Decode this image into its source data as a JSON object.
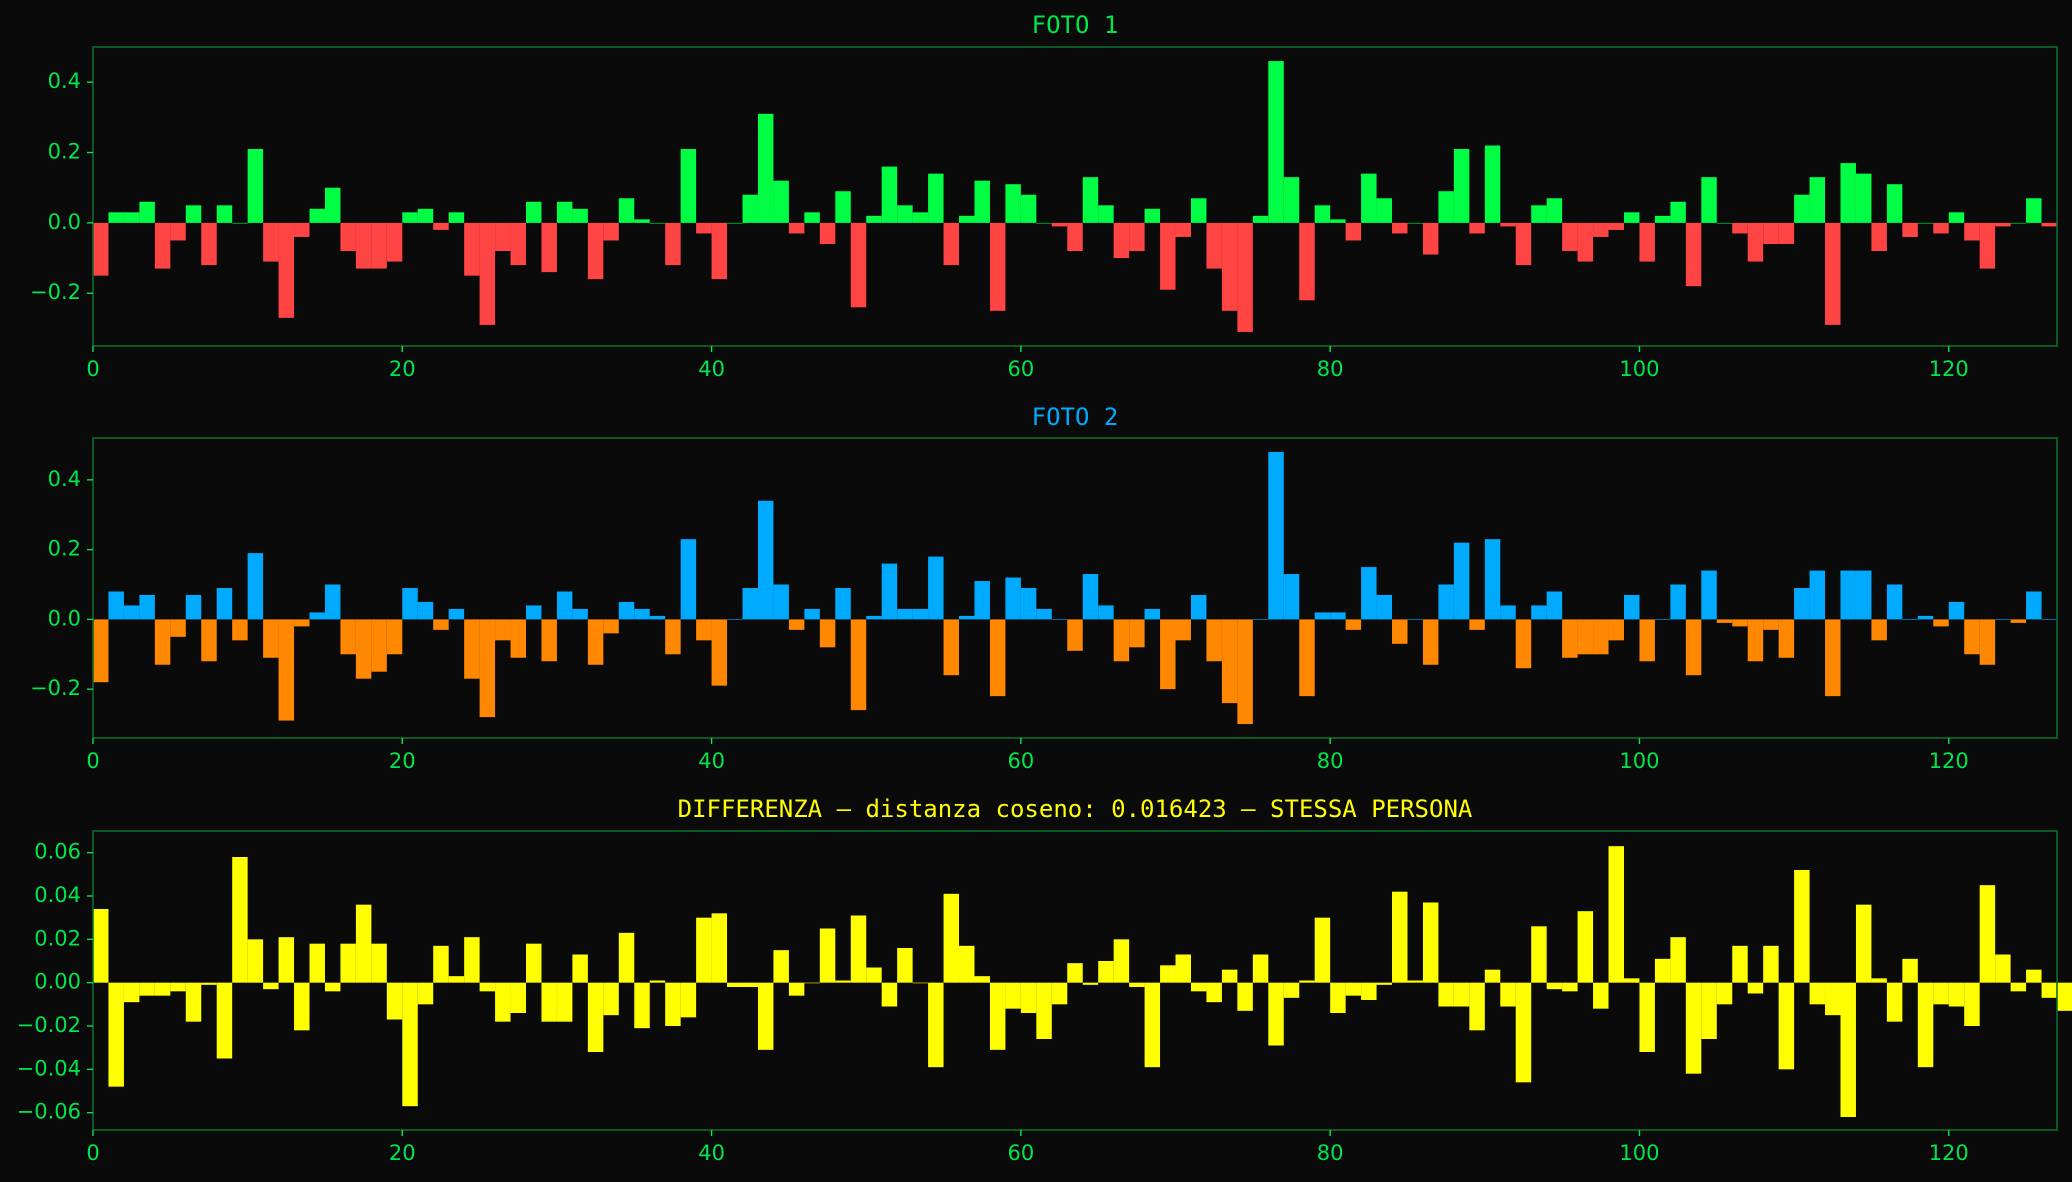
{
  "chart_data": [
    {
      "type": "bar",
      "title": "FOTO 1",
      "title_color": "#00e64d",
      "pos_color": "#00ff44",
      "neg_color": "#ff4444",
      "axis_color": "#00e64d",
      "frame_color": "#0a6b2a",
      "xlim": [
        0,
        127
      ],
      "ylim": [
        -0.35,
        0.5
      ],
      "xticks": [
        0,
        20,
        40,
        60,
        80,
        100,
        120
      ],
      "yticks": [
        -0.2,
        0.0,
        0.2,
        0.4
      ],
      "ytick_labels": [
        "−0.2",
        "0.0",
        "0.2",
        "0.4"
      ],
      "xtick_labels": [
        "0",
        "20",
        "40",
        "60",
        "80",
        "100",
        "120"
      ],
      "values": [
        -0.15,
        0.03,
        0.03,
        0.06,
        -0.13,
        -0.05,
        0.05,
        -0.12,
        0.05,
        0.0,
        0.21,
        -0.11,
        -0.27,
        -0.04,
        0.04,
        0.1,
        -0.08,
        -0.13,
        -0.13,
        -0.11,
        0.03,
        0.04,
        -0.02,
        0.03,
        -0.15,
        -0.29,
        -0.08,
        -0.12,
        0.06,
        -0.14,
        0.06,
        0.04,
        -0.16,
        -0.05,
        0.07,
        0.01,
        0.0,
        -0.12,
        0.21,
        -0.03,
        -0.16,
        0.0,
        0.08,
        0.31,
        0.12,
        -0.03,
        0.03,
        -0.06,
        0.09,
        -0.24,
        0.02,
        0.16,
        0.05,
        0.03,
        0.14,
        -0.12,
        0.02,
        0.12,
        -0.25,
        0.11,
        0.08,
        0.0,
        -0.01,
        -0.08,
        0.13,
        0.05,
        -0.1,
        -0.08,
        0.04,
        -0.19,
        -0.04,
        0.07,
        -0.13,
        -0.25,
        -0.31,
        0.02,
        0.46,
        0.13,
        -0.22,
        0.05,
        0.01,
        -0.05,
        0.14,
        0.07,
        -0.03,
        0.0,
        -0.09,
        0.09,
        0.21,
        -0.03,
        0.22,
        -0.01,
        -0.12,
        0.05,
        0.07,
        -0.08,
        -0.11,
        -0.04,
        -0.02,
        0.03,
        -0.11,
        0.02,
        0.06,
        -0.18,
        0.13,
        0.0,
        -0.03,
        -0.11,
        -0.06,
        -0.06,
        0.08,
        0.13,
        -0.29,
        0.17,
        0.14,
        -0.08,
        0.11,
        -0.04,
        0.0,
        -0.03,
        0.03,
        -0.05,
        -0.13,
        -0.01,
        0.0,
        0.07,
        -0.01
      ]
    },
    {
      "type": "bar",
      "title": "FOTO 2",
      "title_color": "#00aaff",
      "pos_color": "#00aaff",
      "neg_color": "#ff8800",
      "axis_color": "#00e64d",
      "frame_color": "#0a6b2a",
      "xlim": [
        0,
        127
      ],
      "ylim": [
        -0.34,
        0.52
      ],
      "xticks": [
        0,
        20,
        40,
        60,
        80,
        100,
        120
      ],
      "yticks": [
        -0.2,
        0.0,
        0.2,
        0.4
      ],
      "ytick_labels": [
        "−0.2",
        "0.0",
        "0.2",
        "0.4"
      ],
      "xtick_labels": [
        "0",
        "20",
        "40",
        "60",
        "80",
        "100",
        "120"
      ],
      "values": [
        -0.18,
        0.08,
        0.04,
        0.07,
        -0.13,
        -0.05,
        0.07,
        -0.12,
        0.09,
        -0.06,
        0.19,
        -0.11,
        -0.29,
        -0.02,
        0.02,
        0.1,
        -0.1,
        -0.17,
        -0.15,
        -0.1,
        0.09,
        0.05,
        -0.03,
        0.03,
        -0.17,
        -0.28,
        -0.06,
        -0.11,
        0.04,
        -0.12,
        0.08,
        0.03,
        -0.13,
        -0.04,
        0.05,
        0.03,
        0.01,
        -0.1,
        0.23,
        -0.06,
        -0.19,
        0.0,
        0.09,
        0.34,
        0.1,
        -0.03,
        0.03,
        -0.08,
        0.09,
        -0.26,
        0.01,
        0.16,
        0.03,
        0.03,
        0.18,
        -0.16,
        0.01,
        0.11,
        -0.22,
        0.12,
        0.09,
        0.03,
        0.0,
        -0.09,
        0.13,
        0.04,
        -0.12,
        -0.08,
        0.03,
        -0.2,
        -0.06,
        0.07,
        -0.12,
        -0.24,
        -0.3,
        0.0,
        0.48,
        0.13,
        -0.22,
        0.02,
        0.02,
        -0.03,
        0.15,
        0.07,
        -0.07,
        0.0,
        -0.13,
        0.1,
        0.22,
        -0.03,
        0.23,
        0.04,
        -0.14,
        0.04,
        0.08,
        -0.11,
        -0.1,
        -0.1,
        -0.06,
        0.07,
        -0.12,
        0.0,
        0.1,
        -0.16,
        0.14,
        -0.01,
        -0.02,
        -0.12,
        -0.03,
        -0.11,
        0.09,
        0.14,
        -0.22,
        0.14,
        0.14,
        -0.06,
        0.1,
        0.0,
        0.01,
        -0.02,
        0.05,
        -0.1,
        -0.13,
        0.0,
        -0.01,
        0.08,
        0.0
      ]
    },
    {
      "type": "bar",
      "title": "DIFFERENZA — distanza coseno: 0.016423 — STESSA PERSONA",
      "title_color": "#ffff00",
      "pos_color": "#ffff00",
      "neg_color": "#ffff00",
      "axis_color": "#00e64d",
      "frame_color": "#0a6b2a",
      "xlim": [
        0,
        127
      ],
      "ylim": [
        -0.068,
        0.07
      ],
      "xticks": [
        0,
        20,
        40,
        60,
        80,
        100,
        120
      ],
      "yticks": [
        -0.06,
        -0.04,
        -0.02,
        0.0,
        0.02,
        0.04,
        0.06
      ],
      "ytick_labels": [
        "−0.06",
        "−0.04",
        "−0.02",
        "0.00",
        "0.02",
        "0.04",
        "0.06"
      ],
      "xtick_labels": [
        "0",
        "20",
        "40",
        "60",
        "80",
        "100",
        "120"
      ],
      "values": [
        0.034,
        -0.048,
        -0.009,
        -0.006,
        -0.006,
        -0.004,
        -0.018,
        -0.001,
        -0.035,
        0.058,
        0.02,
        -0.003,
        0.021,
        -0.022,
        0.018,
        -0.004,
        0.018,
        0.036,
        0.018,
        -0.017,
        -0.057,
        -0.01,
        0.017,
        0.003,
        0.021,
        -0.004,
        -0.018,
        -0.014,
        0.018,
        -0.018,
        -0.018,
        0.013,
        -0.032,
        -0.015,
        0.023,
        -0.021,
        0.001,
        -0.02,
        -0.016,
        0.03,
        0.032,
        -0.002,
        -0.002,
        -0.031,
        0.015,
        -0.006,
        0.0,
        0.025,
        0.001,
        0.031,
        0.007,
        -0.011,
        0.016,
        0.0,
        -0.039,
        0.041,
        0.017,
        0.003,
        -0.031,
        -0.012,
        -0.014,
        -0.026,
        -0.01,
        0.009,
        -0.001,
        0.01,
        0.02,
        -0.002,
        -0.039,
        0.008,
        0.013,
        -0.004,
        -0.009,
        0.006,
        -0.013,
        0.013,
        -0.029,
        -0.007,
        0.001,
        0.03,
        -0.014,
        -0.006,
        -0.008,
        -0.001,
        0.042,
        0.001,
        0.037,
        -0.011,
        -0.011,
        -0.022,
        0.006,
        -0.011,
        -0.046,
        0.026,
        -0.003,
        -0.004,
        0.033,
        -0.012,
        0.063,
        0.002,
        -0.032,
        0.011,
        0.021,
        -0.042,
        -0.026,
        -0.01,
        0.017,
        -0.005,
        0.017,
        -0.04,
        0.052,
        -0.01,
        -0.015,
        -0.062,
        0.036,
        0.002,
        -0.018,
        0.011,
        -0.039,
        -0.01,
        -0.011,
        -0.02,
        0.045,
        0.013,
        -0.004,
        0.006,
        -0.007,
        -0.013
      ]
    }
  ]
}
